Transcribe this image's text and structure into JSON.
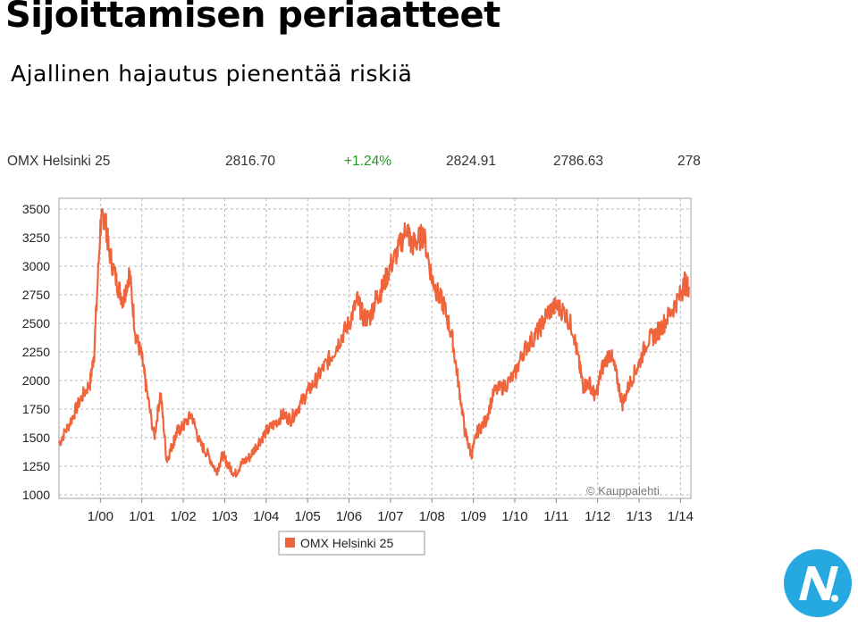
{
  "slide": {
    "title": "Sijoittamisen periaatteet",
    "subtitle": "Ajallinen hajautus pienentää riskiä"
  },
  "quote": {
    "name": "OMX Helsinki 25",
    "last": "2816.70",
    "change": "+1.24%",
    "high": "2824.91",
    "low": "2786.63",
    "extra": "278",
    "change_color": "#1e9a1e"
  },
  "chart_data": {
    "type": "line",
    "title": "",
    "xlabel": "",
    "ylabel": "",
    "x_ticks": [
      "1/00",
      "1/01",
      "1/02",
      "1/03",
      "1/04",
      "1/05",
      "1/06",
      "1/07",
      "1/08",
      "1/09",
      "1/10",
      "1/11",
      "1/12",
      "1/13",
      "1/14"
    ],
    "y_ticks": [
      1000,
      1250,
      1500,
      1750,
      2000,
      2250,
      2500,
      2750,
      3000,
      3250,
      3500
    ],
    "ylim": [
      1000,
      3600
    ],
    "xlim": [
      1999.0,
      2014.25
    ],
    "grid": true,
    "legend_position": "bottom-left",
    "watermark": "© Kauppalehti",
    "series": [
      {
        "name": "OMX Helsinki 25",
        "color": "#f0643c",
        "x": [
          1999.0,
          1999.25,
          1999.5,
          1999.75,
          1999.85,
          2000.0,
          2000.1,
          2000.2,
          2000.4,
          2000.55,
          2000.7,
          2000.85,
          2001.0,
          2001.1,
          2001.3,
          2001.45,
          2001.6,
          2001.75,
          2001.85,
          2002.0,
          2002.2,
          2002.4,
          2002.6,
          2002.8,
          2002.95,
          2003.1,
          2003.25,
          2003.4,
          2003.6,
          2003.8,
          2004.0,
          2004.2,
          2004.4,
          2004.6,
          2004.8,
          2005.0,
          2005.2,
          2005.4,
          2005.6,
          2005.8,
          2006.0,
          2006.2,
          2006.35,
          2006.5,
          2006.65,
          2006.8,
          2007.0,
          2007.2,
          2007.4,
          2007.5,
          2007.65,
          2007.8,
          2008.0,
          2008.15,
          2008.3,
          2008.5,
          2008.65,
          2008.8,
          2008.95,
          2009.1,
          2009.3,
          2009.5,
          2009.75,
          2010.0,
          2010.2,
          2010.4,
          2010.6,
          2010.8,
          2011.0,
          2011.2,
          2011.4,
          2011.55,
          2011.65,
          2011.8,
          2011.95,
          2012.1,
          2012.3,
          2012.45,
          2012.6,
          2012.8,
          2013.0,
          2013.2,
          2013.4,
          2013.6,
          2013.8,
          2014.0,
          2014.1,
          2014.2
        ],
        "y": [
          1450,
          1620,
          1820,
          1980,
          2250,
          3350,
          3460,
          3150,
          2850,
          2700,
          2950,
          2400,
          2200,
          1950,
          1500,
          1900,
          1300,
          1450,
          1550,
          1600,
          1700,
          1450,
          1350,
          1200,
          1350,
          1250,
          1180,
          1270,
          1330,
          1450,
          1550,
          1620,
          1700,
          1660,
          1780,
          1900,
          2000,
          2120,
          2230,
          2370,
          2500,
          2700,
          2550,
          2550,
          2720,
          2800,
          3000,
          3150,
          3350,
          3180,
          3220,
          3280,
          2900,
          2750,
          2650,
          2350,
          1950,
          1550,
          1350,
          1550,
          1650,
          1900,
          1950,
          2050,
          2250,
          2350,
          2450,
          2600,
          2650,
          2600,
          2450,
          2150,
          1950,
          1980,
          1850,
          2100,
          2250,
          2050,
          1800,
          2000,
          2150,
          2350,
          2400,
          2500,
          2620,
          2750,
          2850,
          2820
        ]
      }
    ]
  },
  "logo": {
    "icon": "stylized-N-circle-logo",
    "color": "#26a9e0"
  }
}
